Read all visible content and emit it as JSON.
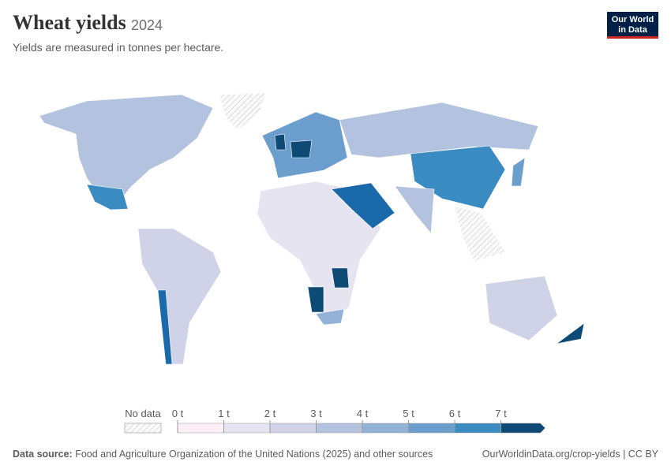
{
  "header": {
    "title": "Wheat yields",
    "year": "2024",
    "subtitle": "Yields are measured in tonnes per hectare."
  },
  "logo": {
    "line1": "Our World",
    "line2": "in Data"
  },
  "legend": {
    "no_data": "No data",
    "ticks": [
      {
        "value": 0,
        "label": "0 t"
      },
      {
        "value": 1,
        "label": "1 t"
      },
      {
        "value": 2,
        "label": "2 t"
      },
      {
        "value": 3,
        "label": "3 t"
      },
      {
        "value": 4,
        "label": "4 t"
      },
      {
        "value": 5,
        "label": "5 t"
      },
      {
        "value": 6,
        "label": "6 t"
      },
      {
        "value": 7,
        "label": "7 t"
      }
    ],
    "colors": [
      "#fcf0f6",
      "#e6e4f1",
      "#d0d2e8",
      "#b3c3df",
      "#93b2d7",
      "#6c9ecd",
      "#3a8bc2",
      "#1a6aab",
      "#0d4a76"
    ]
  },
  "footer": {
    "source_label": "Data source:",
    "source_text": "Food and Agriculture Organization of the United Nations (2025) and other sources",
    "link": "OurWorldinData.org/crop-yields | CC BY"
  }
}
